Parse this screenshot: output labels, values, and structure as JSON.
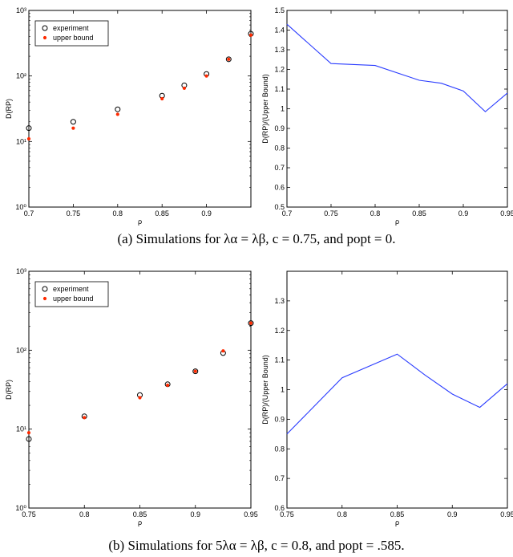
{
  "captions": [
    "(a) Simulations for λα = λβ, c = 0.75, and popt = 0.",
    "(b) Simulations for 5λα = λβ, c = 0.8, and popt = .585."
  ],
  "colors": {
    "experiment": "#000000",
    "upper_bound": "#ff2a00",
    "line": "#2a3cff",
    "axis": "#000000"
  },
  "chart_data": [
    {
      "type": "scatter",
      "panel": "a-left",
      "xlabel": "ρ",
      "ylabel": "D(RP)",
      "yscale": "log",
      "xlim": [
        0.7,
        0.95
      ],
      "ylim": [
        1,
        1000
      ],
      "xticks": [
        0.7,
        0.75,
        0.8,
        0.85,
        0.9
      ],
      "xtick_labels": [
        "0.7",
        "0.75",
        "0.8",
        "0.85",
        "0.9"
      ],
      "yticks": [
        1,
        10,
        100,
        1000
      ],
      "ytick_labels": [
        "10⁰",
        "10¹",
        "10²",
        "10³"
      ],
      "legend": "top-left",
      "series": [
        {
          "name": "experiment",
          "marker": "open-circle",
          "x": [
            0.7,
            0.75,
            0.8,
            0.85,
            0.875,
            0.9,
            0.925,
            0.95
          ],
          "y": [
            16,
            20,
            31,
            50,
            72,
            107,
            180,
            440
          ]
        },
        {
          "name": "upper bound",
          "marker": "filled-dot",
          "x": [
            0.7,
            0.75,
            0.8,
            0.85,
            0.875,
            0.9,
            0.925,
            0.95
          ],
          "y": [
            11,
            16,
            26,
            45,
            65,
            100,
            180,
            420
          ]
        }
      ]
    },
    {
      "type": "line",
      "panel": "a-right",
      "xlabel": "ρ",
      "ylabel": "D(RP)/(Upper Bound)",
      "xlim": [
        0.7,
        0.95
      ],
      "ylim": [
        0.5,
        1.5
      ],
      "xticks": [
        0.7,
        0.75,
        0.8,
        0.85,
        0.9,
        0.95
      ],
      "xtick_labels": [
        "0.7",
        "0.75",
        "0.8",
        "0.85",
        "0.9",
        "0.95"
      ],
      "yticks": [
        0.5,
        0.6,
        0.7,
        0.8,
        0.9,
        1.0,
        1.1,
        1.2,
        1.3,
        1.4,
        1.5
      ],
      "ytick_labels": [
        "0.5",
        "0.6",
        "0.7",
        "0.8",
        "0.9",
        "1",
        "1.1",
        "1.2",
        "1.3",
        "1.4",
        "1.5"
      ],
      "series": [
        {
          "x": [
            0.7,
            0.75,
            0.8,
            0.85,
            0.875,
            0.9,
            0.925,
            0.95
          ],
          "y": [
            1.43,
            1.23,
            1.22,
            1.145,
            1.13,
            1.09,
            0.985,
            1.08
          ]
        }
      ]
    },
    {
      "type": "scatter",
      "panel": "b-left",
      "xlabel": "ρ",
      "ylabel": "D(RP)",
      "yscale": "log",
      "xlim": [
        0.75,
        0.95
      ],
      "ylim": [
        1,
        1000
      ],
      "xticks": [
        0.75,
        0.8,
        0.85,
        0.9,
        0.95
      ],
      "xtick_labels": [
        "0.75",
        "0.8",
        "0.85",
        "0.9",
        "0.95"
      ],
      "yticks": [
        1,
        10,
        100,
        1000
      ],
      "ytick_labels": [
        "10⁰",
        "10¹",
        "10²",
        "10³"
      ],
      "legend": "top-left",
      "series": [
        {
          "name": "experiment",
          "marker": "open-circle",
          "x": [
            0.75,
            0.8,
            0.85,
            0.875,
            0.9,
            0.925,
            0.95
          ],
          "y": [
            7.5,
            14.5,
            27,
            37,
            54,
            92,
            220
          ]
        },
        {
          "name": "upper bound",
          "marker": "filled-dot",
          "x": [
            0.75,
            0.8,
            0.85,
            0.875,
            0.9,
            0.925,
            0.95
          ],
          "y": [
            9,
            14,
            25,
            36,
            54,
            98,
            220
          ]
        }
      ]
    },
    {
      "type": "line",
      "panel": "b-right",
      "xlabel": "ρ",
      "ylabel": "D(RP)/(Upper Bound)",
      "xlim": [
        0.75,
        0.95
      ],
      "ylim": [
        0.6,
        1.4
      ],
      "xticks": [
        0.75,
        0.8,
        0.85,
        0.9,
        0.95
      ],
      "xtick_labels": [
        "0.75",
        "0.8",
        "0.85",
        "0.9",
        "0.95"
      ],
      "yticks": [
        0.6,
        0.7,
        0.8,
        0.9,
        1.0,
        1.1,
        1.2,
        1.3
      ],
      "ytick_labels": [
        "0.6",
        "0.7",
        "0.8",
        "0.9",
        "1",
        "1.1",
        "1.2",
        "1.3"
      ],
      "series": [
        {
          "x": [
            0.75,
            0.8,
            0.85,
            0.875,
            0.9,
            0.925,
            0.95
          ],
          "y": [
            0.85,
            1.04,
            1.12,
            1.05,
            0.985,
            0.94,
            1.02
          ]
        }
      ]
    }
  ]
}
